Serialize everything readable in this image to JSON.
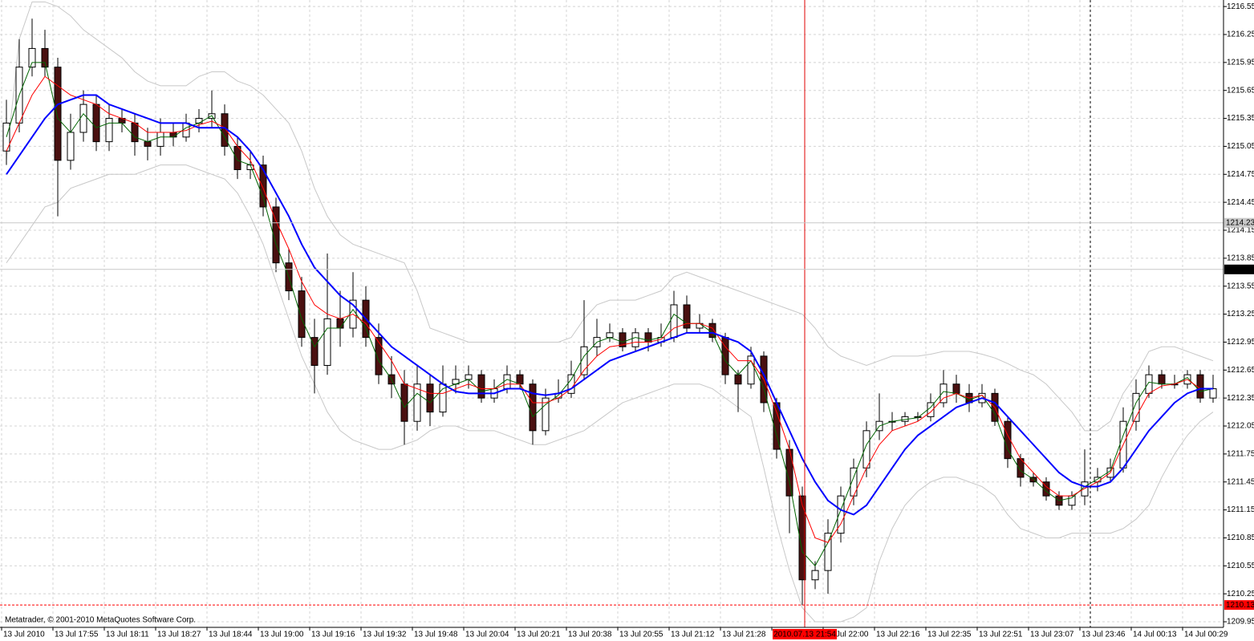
{
  "chart_data": {
    "type": "candlestick",
    "annotation": "Metatrader, © 2001-2010 MetaQuotes Software Corp.",
    "crosshair_label": "2010.07.13 21:54",
    "categories": [
      "13 Jul 2010",
      null,
      null,
      null,
      "13 Jul 17:55",
      null,
      null,
      null,
      "13 Jul 18:11",
      null,
      null,
      null,
      "13 Jul 18:27",
      null,
      null,
      null,
      "13 Jul 18:44",
      null,
      null,
      null,
      "13 Jul 19:00",
      null,
      null,
      null,
      "13 Jul 19:16",
      null,
      null,
      null,
      "13 Jul 19:32",
      null,
      null,
      null,
      "13 Jul 19:48",
      null,
      null,
      null,
      "13 Jul 20:04",
      null,
      null,
      null,
      "13 Jul 20:21",
      null,
      null,
      null,
      "13 Jul 20:38",
      null,
      null,
      null,
      "13 Jul 20:55",
      null,
      null,
      null,
      "13 Jul 21:12",
      null,
      null,
      null,
      "13 Jul 21:28",
      null,
      null,
      null,
      null,
      null,
      null,
      null,
      "13 Jul 22:00",
      null,
      null,
      null,
      "13 Jul 22:16",
      null,
      null,
      null,
      "13 Jul 22:35",
      null,
      null,
      null,
      "13 Jul 22:51",
      null,
      null,
      null,
      "13 Jul 23:07",
      null,
      null,
      null,
      "13 Jul 23:46",
      null,
      null,
      null,
      "14 Jul 00:13",
      null,
      null,
      null,
      "14 Jul 00:29",
      null,
      null
    ],
    "open": [
      1215.0,
      1215.3,
      1215.9,
      1216.1,
      1215.9,
      1214.9,
      1215.2,
      1215.5,
      1215.1,
      1215.35,
      1215.3,
      1215.1,
      1215.05,
      1215.2,
      1215.15,
      1215.3,
      1215.35,
      1215.4,
      1215.05,
      1214.8,
      1214.85,
      1214.4,
      1213.8,
      1213.5,
      1213.0,
      1212.7,
      1213.2,
      1213.1,
      1213.4,
      1213.0,
      1212.6,
      1212.5,
      1212.1,
      1212.5,
      1212.2,
      1212.5,
      1212.55,
      1212.6,
      1212.35,
      1212.45,
      1212.6,
      1212.5,
      1212.0,
      1212.35,
      1212.4,
      1212.6,
      1212.9,
      1213.0,
      1213.05,
      1212.9,
      1213.05,
      1212.95,
      1213.0,
      1213.35,
      1213.1,
      1213.15,
      1213.0,
      1212.6,
      1212.5,
      1212.8,
      1212.3,
      1211.8,
      1211.3,
      1210.4,
      1210.5,
      1210.9,
      1211.3,
      1211.6,
      1212.0,
      1212.1,
      1212.1,
      1212.15,
      1212.15,
      1212.3,
      1212.5,
      1212.4,
      1212.3,
      1212.4,
      1212.1,
      1211.7,
      1211.5,
      1211.45,
      1211.3,
      1211.2,
      1211.3,
      1211.45,
      1211.5,
      1211.6,
      1212.1,
      1212.4,
      1212.6,
      1212.5,
      1212.5,
      1212.6,
      1212.35
    ],
    "high": [
      1215.55,
      1216.2,
      1216.42,
      1216.3,
      1216.0,
      1215.4,
      1215.65,
      1215.6,
      1215.5,
      1215.45,
      1215.4,
      1215.25,
      1215.35,
      1215.3,
      1215.4,
      1215.45,
      1215.65,
      1215.5,
      1215.15,
      1215.0,
      1214.95,
      1214.5,
      1213.95,
      1213.65,
      1213.2,
      1213.9,
      1213.5,
      1213.7,
      1213.55,
      1213.15,
      1212.8,
      1212.65,
      1212.7,
      1212.6,
      1212.7,
      1212.7,
      1212.7,
      1212.65,
      1212.55,
      1212.7,
      1212.65,
      1212.55,
      1212.45,
      1212.55,
      1212.75,
      1213.4,
      1213.2,
      1213.15,
      1213.1,
      1213.1,
      1213.1,
      1213.15,
      1213.5,
      1213.45,
      1213.25,
      1213.2,
      1213.05,
      1212.65,
      1212.9,
      1212.85,
      1212.35,
      1211.9,
      1211.4,
      1210.6,
      1211.05,
      1211.4,
      1211.7,
      1212.1,
      1212.4,
      1212.2,
      1212.2,
      1212.2,
      1212.4,
      1212.65,
      1212.6,
      1212.5,
      1212.5,
      1212.45,
      1212.15,
      1211.75,
      1211.55,
      1211.5,
      1211.35,
      1211.35,
      1211.8,
      1211.6,
      1211.7,
      1212.25,
      1212.55,
      1212.7,
      1212.65,
      1212.6,
      1212.65,
      1212.65,
      1212.6
    ],
    "low": [
      1214.85,
      1215.2,
      1215.8,
      1215.8,
      1214.3,
      1214.8,
      1215.1,
      1215.0,
      1215.0,
      1215.2,
      1214.95,
      1214.9,
      1214.95,
      1215.05,
      1215.1,
      1215.2,
      1215.25,
      1214.95,
      1214.7,
      1214.7,
      1214.3,
      1213.7,
      1213.4,
      1212.9,
      1212.4,
      1212.6,
      1212.9,
      1213.0,
      1212.9,
      1212.5,
      1212.35,
      1211.85,
      1212.0,
      1212.05,
      1212.15,
      1212.4,
      1212.45,
      1212.3,
      1212.3,
      1212.4,
      1212.45,
      1211.85,
      1211.95,
      1212.3,
      1212.35,
      1212.55,
      1212.8,
      1212.95,
      1212.85,
      1212.85,
      1212.85,
      1212.9,
      1212.95,
      1213.05,
      1213.05,
      1212.95,
      1212.5,
      1212.2,
      1212.45,
      1212.2,
      1211.7,
      1210.9,
      1210.13,
      1210.3,
      1210.25,
      1210.8,
      1211.2,
      1211.5,
      1211.9,
      1212.0,
      1212.05,
      1212.1,
      1212.1,
      1212.25,
      1212.3,
      1212.2,
      1212.25,
      1212.05,
      1211.6,
      1211.4,
      1211.4,
      1211.25,
      1211.15,
      1211.15,
      1211.2,
      1211.35,
      1211.45,
      1211.55,
      1212.0,
      1212.35,
      1212.45,
      1212.45,
      1212.45,
      1212.3,
      1212.3
    ],
    "close": [
      1215.3,
      1215.9,
      1216.1,
      1215.9,
      1214.9,
      1215.2,
      1215.5,
      1215.1,
      1215.35,
      1215.3,
      1215.1,
      1215.05,
      1215.2,
      1215.15,
      1215.3,
      1215.35,
      1215.4,
      1215.05,
      1214.8,
      1214.85,
      1214.4,
      1213.8,
      1213.5,
      1213.0,
      1212.7,
      1213.2,
      1213.1,
      1213.4,
      1213.0,
      1212.6,
      1212.5,
      1212.1,
      1212.5,
      1212.2,
      1212.5,
      1212.55,
      1212.6,
      1212.35,
      1212.45,
      1212.6,
      1212.5,
      1212.0,
      1212.35,
      1212.4,
      1212.6,
      1212.9,
      1213.0,
      1213.05,
      1212.9,
      1213.05,
      1212.95,
      1213.0,
      1213.35,
      1213.1,
      1213.15,
      1213.0,
      1212.6,
      1212.5,
      1212.8,
      1212.3,
      1211.8,
      1211.3,
      1210.4,
      1210.5,
      1210.9,
      1211.3,
      1211.6,
      1212.0,
      1212.1,
      1212.1,
      1212.15,
      1212.15,
      1212.3,
      1212.5,
      1212.4,
      1212.3,
      1212.4,
      1212.1,
      1211.7,
      1211.5,
      1211.45,
      1211.3,
      1211.2,
      1211.3,
      1211.45,
      1211.5,
      1211.6,
      1212.1,
      1212.4,
      1212.6,
      1212.5,
      1212.5,
      1212.6,
      1212.35,
      1212.45
    ],
    "bull_color": "#ffffff",
    "bear_color": "#4a1010",
    "overlays": [
      {
        "color": "#c8c8c8",
        "width": 1,
        "values": [
          1214.9,
          1216.2,
          1216.6,
          1216.6,
          1216.55,
          1216.45,
          1216.3,
          1216.2,
          1216.1,
          1216.0,
          1215.85,
          1215.75,
          1215.7,
          1215.7,
          1215.7,
          1215.8,
          1215.85,
          1215.85,
          1215.75,
          1215.7,
          1215.6,
          1215.45,
          1215.3,
          1215.0,
          1214.6,
          1214.3,
          1214.1,
          1214.0,
          1213.95,
          1213.9,
          1213.85,
          1213.8,
          1213.5,
          1213.1,
          1213.05,
          1213.0,
          1212.95,
          1212.95,
          1212.95,
          1212.95,
          1212.95,
          1212.95,
          1212.95,
          1212.95,
          1213.0,
          1213.2,
          1213.35,
          1213.4,
          1213.4,
          1213.4,
          1213.45,
          1213.5,
          1213.65,
          1213.7,
          1213.65,
          1213.6,
          1213.55,
          1213.5,
          1213.45,
          1213.4,
          1213.35,
          1213.3,
          1213.25,
          1213.1,
          1212.9,
          1212.8,
          1212.75,
          1212.7,
          1212.75,
          1212.8,
          1212.8,
          1212.8,
          1212.82,
          1212.85,
          1212.85,
          1212.85,
          1212.82,
          1212.78,
          1212.72,
          1212.65,
          1212.6,
          1212.5,
          1212.35,
          1212.2,
          1212.0,
          1212.0,
          1212.1,
          1212.4,
          1212.6,
          1212.85,
          1212.9,
          1212.9,
          1212.85,
          1212.8,
          1212.75
        ]
      },
      {
        "color": "#c8c8c8",
        "width": 1,
        "values": [
          1213.8,
          1214.0,
          1214.2,
          1214.4,
          1214.45,
          1214.6,
          1214.65,
          1214.7,
          1214.75,
          1214.75,
          1214.75,
          1214.8,
          1214.85,
          1214.85,
          1214.85,
          1214.8,
          1214.75,
          1214.7,
          1214.55,
          1214.3,
          1214.0,
          1213.6,
          1213.2,
          1212.8,
          1212.5,
          1212.2,
          1212.0,
          1211.9,
          1211.85,
          1211.8,
          1211.8,
          1211.85,
          1211.9,
          1212.0,
          1212.05,
          1212.05,
          1212.0,
          1212.0,
          1212.0,
          1211.95,
          1211.9,
          1211.85,
          1211.85,
          1211.9,
          1211.95,
          1212.0,
          1212.1,
          1212.2,
          1212.3,
          1212.35,
          1212.4,
          1212.45,
          1212.5,
          1212.5,
          1212.5,
          1212.45,
          1212.35,
          1212.25,
          1212.15,
          1211.6,
          1211.0,
          1210.5,
          1210.1,
          1209.95,
          1209.95,
          1209.95,
          1210.0,
          1210.1,
          1210.6,
          1210.95,
          1211.2,
          1211.35,
          1211.45,
          1211.5,
          1211.5,
          1211.45,
          1211.4,
          1211.3,
          1211.1,
          1210.95,
          1210.9,
          1210.85,
          1210.85,
          1210.9,
          1210.9,
          1210.9,
          1210.9,
          1210.95,
          1211.05,
          1211.2,
          1211.5,
          1211.75,
          1211.95,
          1212.1,
          1212.2
        ]
      },
      {
        "color": "#006400",
        "width": 1,
        "values": [
          1215.15,
          1215.6,
          1215.95,
          1215.95,
          1215.35,
          1215.2,
          1215.4,
          1215.25,
          1215.3,
          1215.3,
          1215.15,
          1215.1,
          1215.15,
          1215.15,
          1215.25,
          1215.3,
          1215.38,
          1215.15,
          1214.9,
          1214.85,
          1214.5,
          1214.0,
          1213.65,
          1213.2,
          1212.9,
          1213.1,
          1213.1,
          1213.3,
          1213.1,
          1212.75,
          1212.55,
          1212.25,
          1212.4,
          1212.3,
          1212.45,
          1212.5,
          1212.55,
          1212.42,
          1212.45,
          1212.55,
          1212.5,
          1212.15,
          1212.28,
          1212.38,
          1212.55,
          1212.8,
          1212.95,
          1213.0,
          1212.95,
          1213.0,
          1212.97,
          1213.0,
          1213.25,
          1213.15,
          1213.15,
          1213.05,
          1212.75,
          1212.6,
          1212.75,
          1212.45,
          1211.95,
          1211.45,
          1210.7,
          1210.55,
          1210.8,
          1211.15,
          1211.5,
          1211.85,
          1212.05,
          1212.1,
          1212.12,
          1212.14,
          1212.25,
          1212.42,
          1212.4,
          1212.33,
          1212.38,
          1212.18,
          1211.8,
          1211.57,
          1211.48,
          1211.35,
          1211.25,
          1211.28,
          1211.4,
          1211.48,
          1211.57,
          1211.95,
          1212.3,
          1212.52,
          1212.5,
          1212.5,
          1212.57,
          1212.42,
          1212.45
        ]
      },
      {
        "color": "#ff0000",
        "width": 1,
        "values": [
          1215.0,
          1215.3,
          1215.6,
          1215.8,
          1215.7,
          1215.6,
          1215.55,
          1215.5,
          1215.4,
          1215.35,
          1215.3,
          1215.2,
          1215.2,
          1215.2,
          1215.22,
          1215.28,
          1215.32,
          1215.25,
          1215.05,
          1214.9,
          1214.6,
          1214.25,
          1213.95,
          1213.6,
          1213.35,
          1213.25,
          1213.2,
          1213.25,
          1213.15,
          1212.95,
          1212.75,
          1212.5,
          1212.45,
          1212.4,
          1212.4,
          1212.45,
          1212.5,
          1212.45,
          1212.45,
          1212.5,
          1212.5,
          1212.3,
          1212.3,
          1212.35,
          1212.45,
          1212.65,
          1212.8,
          1212.9,
          1212.92,
          1212.95,
          1212.95,
          1212.98,
          1213.1,
          1213.15,
          1213.15,
          1213.1,
          1212.9,
          1212.75,
          1212.75,
          1212.55,
          1212.2,
          1211.8,
          1211.2,
          1210.85,
          1210.8,
          1211.0,
          1211.3,
          1211.6,
          1211.85,
          1212.0,
          1212.05,
          1212.1,
          1212.2,
          1212.35,
          1212.4,
          1212.35,
          1212.38,
          1212.25,
          1211.95,
          1211.7,
          1211.55,
          1211.4,
          1211.3,
          1211.3,
          1211.38,
          1211.45,
          1211.55,
          1211.85,
          1212.15,
          1212.4,
          1212.48,
          1212.5,
          1212.55,
          1212.45,
          1212.45
        ]
      },
      {
        "color": "#0000ff",
        "width": 2,
        "values": [
          1214.75,
          1214.95,
          1215.15,
          1215.35,
          1215.5,
          1215.55,
          1215.6,
          1215.6,
          1215.5,
          1215.45,
          1215.4,
          1215.35,
          1215.3,
          1215.3,
          1215.3,
          1215.25,
          1215.25,
          1215.25,
          1215.15,
          1215.0,
          1214.8,
          1214.55,
          1214.3,
          1214.0,
          1213.75,
          1213.6,
          1213.45,
          1213.35,
          1213.2,
          1213.05,
          1212.9,
          1212.8,
          1212.7,
          1212.6,
          1212.5,
          1212.42,
          1212.4,
          1212.4,
          1212.4,
          1212.45,
          1212.45,
          1212.4,
          1212.38,
          1212.4,
          1212.45,
          1212.55,
          1212.65,
          1212.75,
          1212.8,
          1212.85,
          1212.9,
          1212.95,
          1213.0,
          1213.05,
          1213.05,
          1213.05,
          1213.0,
          1212.95,
          1212.85,
          1212.6,
          1212.3,
          1212.0,
          1211.7,
          1211.45,
          1211.25,
          1211.15,
          1211.1,
          1211.2,
          1211.4,
          1211.6,
          1211.8,
          1211.95,
          1212.05,
          1212.15,
          1212.25,
          1212.3,
          1212.35,
          1212.3,
          1212.15,
          1212.0,
          1211.85,
          1211.7,
          1211.55,
          1211.45,
          1211.4,
          1211.4,
          1211.45,
          1211.6,
          1211.8,
          1212.0,
          1212.15,
          1212.3,
          1212.4,
          1212.45,
          1212.45
        ]
      }
    ],
    "levels": [
      {
        "value": 1214.23,
        "line_color": "#c8c8c8",
        "box_color": "#c8c8c8",
        "dashed": false
      },
      {
        "value": 1213.73,
        "line_color": "#c8c8c8",
        "box_color": "#000000",
        "dashed": false
      },
      {
        "value": 1210.13,
        "line_color": "#ff0000",
        "box_color": "#ff0000",
        "dashed": true
      }
    ],
    "ylim": [
      1209.89,
      1216.62
    ],
    "yticks": [
      1216.55,
      1216.25,
      1215.95,
      1215.65,
      1215.35,
      1215.05,
      1214.75,
      1214.45,
      1214.15,
      1213.85,
      1213.55,
      1213.25,
      1212.95,
      1212.65,
      1212.35,
      1212.05,
      1211.75,
      1211.45,
      1211.15,
      1210.85,
      1210.55,
      1210.25,
      1209.95
    ],
    "grid": true
  }
}
